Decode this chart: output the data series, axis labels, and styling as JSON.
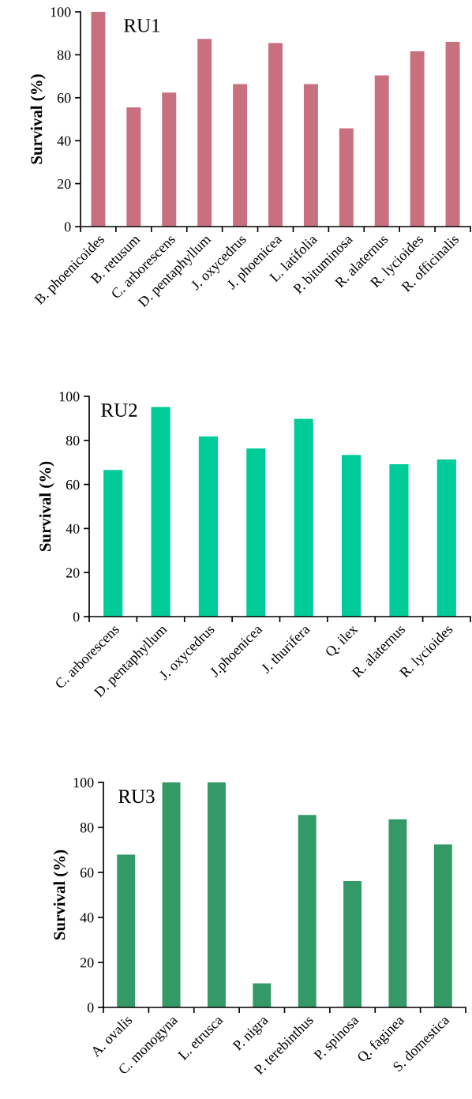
{
  "chart_data": [
    {
      "type": "bar",
      "title": "RU1",
      "ylabel": "Survival (%)",
      "categories": [
        "B. phoenicoides",
        "B. retusum",
        "C. arborescens",
        "D. pentaphyllum",
        "J. oxycedrus",
        "J. phoenicea",
        "L. latifolia",
        "P. bituminosa",
        "R. alaternus",
        "R. lycioides",
        "R. officinalis"
      ],
      "series": [
        {
          "color": "#c87080",
          "values": [
            100,
            55.5,
            62.4,
            87.4,
            66.4,
            85.5,
            66.4,
            45.8,
            70.4,
            81.6,
            86
          ]
        }
      ],
      "ylim": [
        0,
        100
      ],
      "yticks": [
        0,
        20,
        40,
        60,
        80,
        100
      ],
      "grid": false
    },
    {
      "type": "bar",
      "title": "RU2",
      "ylabel": "Survival (%)",
      "categories": [
        "C. arborescens",
        "D. pentaphyllum",
        "J. oxycedrus",
        "J.phoenicea",
        "J. thurifera",
        "Q. ilex",
        "R. alaternus",
        "R. lycioides"
      ],
      "series": [
        {
          "color": "#00cc99",
          "values": [
            66.6,
            95.2,
            81.8,
            76.3,
            89.8,
            73.4,
            69.2,
            71.3
          ]
        }
      ],
      "ylim": [
        0,
        100
      ],
      "yticks": [
        0,
        20,
        40,
        60,
        80,
        100
      ],
      "grid": false
    },
    {
      "type": "bar",
      "title": "RU3",
      "ylabel": "Survival (%)",
      "categories": [
        "A. ovalis",
        "C. monogyna",
        "L. etrusca",
        "P. nigra",
        "P. terebinthus",
        "P. spinosa",
        "Q. faginea",
        "S. domestica"
      ],
      "series": [
        {
          "color": "#339966",
          "values": [
            67.9,
            100,
            100,
            10.7,
            85.5,
            56.1,
            83.6,
            72.5
          ]
        }
      ],
      "ylim": [
        0,
        100
      ],
      "yticks": [
        0,
        20,
        40,
        60,
        80,
        100
      ],
      "grid": false
    }
  ]
}
